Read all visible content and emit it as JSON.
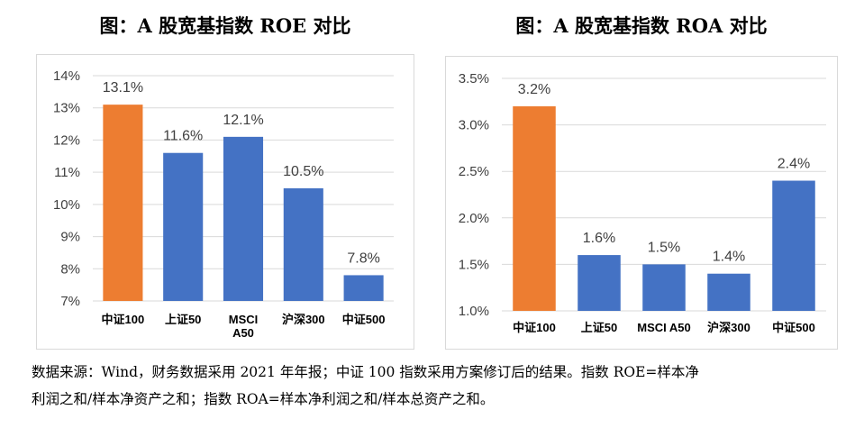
{
  "chart_data": [
    {
      "type": "bar",
      "title": "图：A 股宽基指数 ROE 对比",
      "categories": [
        [
          "中证100"
        ],
        [
          "上证50"
        ],
        [
          "MSCI",
          "A50"
        ],
        [
          "沪深300"
        ],
        [
          "中证500"
        ]
      ],
      "values": [
        13.1,
        11.6,
        12.1,
        10.5,
        7.8
      ],
      "value_labels": [
        "13.1%",
        "11.6%",
        "12.1%",
        "10.5%",
        "7.8%"
      ],
      "bar_colors": [
        "#ED7D31",
        "#4472C4",
        "#4472C4",
        "#4472C4",
        "#4472C4"
      ],
      "ylim": [
        7,
        14
      ],
      "yticks": [
        7,
        8,
        9,
        10,
        11,
        12,
        13,
        14
      ],
      "ytick_labels": [
        "7%",
        "8%",
        "9%",
        "10%",
        "11%",
        "12%",
        "13%",
        "14%"
      ],
      "grid": true
    },
    {
      "type": "bar",
      "title": "图：A 股宽基指数 ROA 对比",
      "categories": [
        [
          "中证100"
        ],
        [
          "上证50"
        ],
        [
          "MSCI A50"
        ],
        [
          "沪深300"
        ],
        [
          "中证500"
        ]
      ],
      "values": [
        3.2,
        1.6,
        1.5,
        1.4,
        2.4
      ],
      "value_labels": [
        "3.2%",
        "1.6%",
        "1.5%",
        "1.4%",
        "2.4%"
      ],
      "bar_colors": [
        "#ED7D31",
        "#4472C4",
        "#4472C4",
        "#4472C4",
        "#4472C4"
      ],
      "ylim": [
        1.0,
        3.5
      ],
      "yticks": [
        1.0,
        1.5,
        2.0,
        2.5,
        3.0,
        3.5
      ],
      "ytick_labels": [
        "1.0%",
        "1.5%",
        "2.0%",
        "2.5%",
        "3.0%",
        "3.5%"
      ],
      "grid": true
    }
  ],
  "note": {
    "line1": "数据来源：Wind，财务数据采用 2021 年年报；中证 100 指数采用方案修订后的结果。指数 ROE=样本净",
    "line2": "利润之和/样本净资产之和；指数 ROA=样本净利润之和/样本总资产之和。"
  }
}
